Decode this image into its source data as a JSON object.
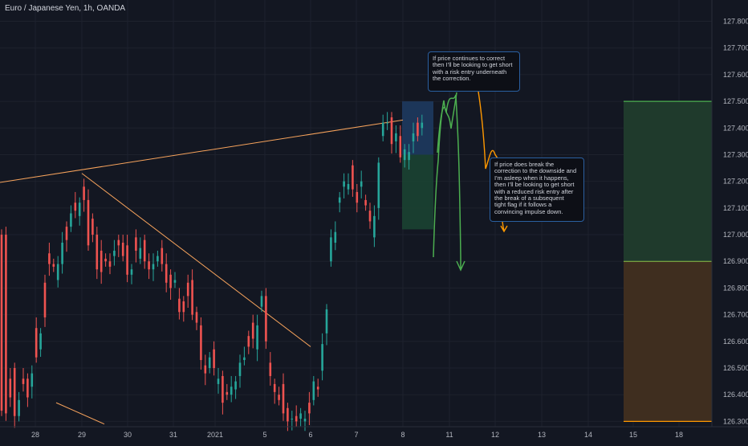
{
  "header": {
    "title": "Euro / Japanese Yen, 1h, OANDA"
  },
  "colors": {
    "background": "#131722",
    "grid": "#1e222d",
    "axis_text": "#b2b5be",
    "candle_up": "#26a69a",
    "candle_down": "#ef5350",
    "trendline": "#f7a35c",
    "projection_green": "#4caf50",
    "projection_orange": "#ff9800",
    "box_blue": "#1e3a5f",
    "box_green": "#1b4332",
    "profit_zone": "#1f3a2c",
    "loss_zone": "#3f2e1f"
  },
  "annotations": [
    {
      "id": "note-short-correction",
      "text": "If price continues to correct\nthen I'll be looking to get short\nwith a risk entry underneath\nthe correction."
    },
    {
      "id": "note-break-downside",
      "text": "If price does break the\ncorrection to the downside and\nI'm asleep when it happens,\nthen I'll be looking to get short\nwith a reduced risk entry after\nthe break of a subsequent\ntight flag if it follows a\nconvincing impulse down."
    }
  ],
  "chart_data": {
    "type": "candlestick",
    "symbol": "Euro / Japanese Yen",
    "interval": "1h",
    "source": "OANDA",
    "ylim": [
      126.28,
      127.88
    ],
    "y_ticks": [
      127.8,
      127.7,
      127.6,
      127.5,
      127.4,
      127.3,
      127.2,
      127.1,
      127.0,
      126.9,
      126.8,
      126.7,
      126.6,
      126.5,
      126.4,
      126.3
    ],
    "y_tick_labels": [
      "127.800",
      "127.700",
      "127.600",
      "127.500",
      "127.400",
      "127.300",
      "127.200",
      "127.100",
      "127.000",
      "126.900",
      "126.800",
      "126.700",
      "126.600",
      "126.500",
      "126.400",
      "126.300"
    ],
    "x_tick_labels": [
      "28",
      "29",
      "30",
      "31",
      "2021",
      "5",
      "6",
      "7",
      "8",
      "11",
      "12",
      "13",
      "14",
      "15",
      "18"
    ],
    "series": [
      {
        "path": [
          [
            127.0,
            126.34
          ],
          [
            127.0,
            126.33
          ],
          [
            126.46,
            126.39
          ],
          [
            126.5,
            126.32
          ],
          [
            126.32,
            126.38
          ],
          [
            126.46,
            126.44
          ],
          [
            126.46,
            126.39
          ],
          [
            126.43,
            126.48
          ],
          [
            126.65,
            126.54
          ],
          [
            126.57,
            126.63
          ],
          [
            126.82,
            126.69
          ],
          [
            126.93,
            126.89
          ],
          [
            126.89,
            126.88
          ],
          [
            126.83,
            126.89
          ],
          [
            126.89,
            126.97
          ],
          [
            127.03,
            126.98
          ],
          [
            127.03,
            127.08
          ],
          [
            127.12,
            127.09
          ],
          [
            127.07,
            127.12
          ],
          [
            127.18,
            127.13
          ],
          [
            127.13,
            126.96
          ],
          [
            127.06,
            127.0
          ],
          [
            127.0,
            126.87
          ],
          [
            126.94,
            126.86
          ],
          [
            126.91,
            126.9
          ],
          [
            126.9,
            126.88
          ],
          [
            126.92,
            126.94
          ],
          [
            126.98,
            126.96
          ],
          [
            126.97,
            126.92
          ],
          [
            126.96,
            126.85
          ],
          [
            126.85,
            126.87
          ],
          [
            126.99,
            126.94
          ],
          [
            126.91,
            126.95
          ],
          [
            126.98,
            126.9
          ],
          [
            126.9,
            126.87
          ],
          [
            126.87,
            126.89
          ],
          [
            126.9,
            126.92
          ],
          [
            126.95,
            126.89
          ],
          [
            126.89,
            126.82
          ],
          [
            126.85,
            126.8
          ],
          [
            126.82,
            126.83
          ],
          [
            126.76,
            126.71
          ],
          [
            126.75,
            126.71
          ],
          [
            126.82,
            126.77
          ],
          [
            126.83,
            126.7
          ],
          [
            126.71,
            126.67
          ],
          [
            126.66,
            126.53
          ],
          [
            126.51,
            126.48
          ],
          [
            126.5,
            126.54
          ],
          [
            126.57,
            126.5
          ],
          [
            126.44,
            126.46
          ],
          [
            126.47,
            126.37
          ],
          [
            126.41,
            126.4
          ],
          [
            126.4,
            126.43
          ],
          [
            126.42,
            126.45
          ],
          [
            126.47,
            126.52
          ],
          [
            126.53,
            126.54
          ],
          [
            126.62,
            126.58
          ],
          [
            126.67,
            126.61
          ],
          [
            126.57,
            126.66
          ],
          [
            126.73,
            126.77
          ],
          [
            126.77,
            126.6
          ],
          [
            126.52,
            126.47
          ],
          [
            126.44,
            126.41
          ],
          [
            126.4,
            126.38
          ],
          [
            126.44,
            126.33
          ],
          [
            126.35,
            126.3
          ],
          [
            126.31,
            126.31
          ],
          [
            126.32,
            126.3
          ],
          [
            126.31,
            126.33
          ],
          [
            126.3,
            126.31
          ],
          [
            126.37,
            126.33
          ],
          [
            126.38,
            126.45
          ],
          [
            126.43,
            126.42
          ],
          [
            126.49,
            126.59
          ],
          [
            126.63,
            126.72
          ],
          [
            126.9,
            126.99
          ],
          [
            126.97,
            127.01
          ],
          [
            127.12,
            127.14
          ],
          [
            127.18,
            127.2
          ],
          [
            127.17,
            127.19
          ],
          [
            127.26,
            127.17
          ],
          [
            127.16,
            127.12
          ],
          [
            127.18,
            127.2
          ],
          [
            127.13,
            127.11
          ],
          [
            127.09,
            127.05
          ],
          [
            126.99,
            127.07
          ],
          [
            127.1,
            127.27
          ],
          [
            127.37,
            127.42
          ],
          [
            127.42,
            127.42
          ],
          [
            127.44,
            127.34
          ],
          [
            127.35,
            127.38
          ],
          [
            127.37,
            127.29
          ],
          [
            127.28,
            127.32
          ],
          [
            127.28,
            127.31
          ],
          [
            127.35,
            127.38
          ],
          [
            127.42,
            127.37
          ],
          [
            127.4,
            127.42
          ]
        ]
      }
    ],
    "trendlines": [
      {
        "name": "rising-resistance",
        "from": [
          "27",
          127.19
        ],
        "to": [
          "8",
          127.43
        ]
      },
      {
        "name": "falling-trendline",
        "from": [
          "29",
          127.23
        ],
        "to": [
          "6",
          126.58
        ]
      }
    ],
    "zones": [
      {
        "name": "stop-zone",
        "y_range": [
          127.3,
          127.5
        ]
      },
      {
        "name": "entry-zone",
        "y_range": [
          127.02,
          127.3
        ]
      },
      {
        "name": "profit-zone",
        "y_range": [
          126.9,
          127.5
        ]
      },
      {
        "name": "loss-zone",
        "y_range": [
          126.3,
          126.9
        ]
      }
    ],
    "grid": true,
    "legend": "none"
  }
}
